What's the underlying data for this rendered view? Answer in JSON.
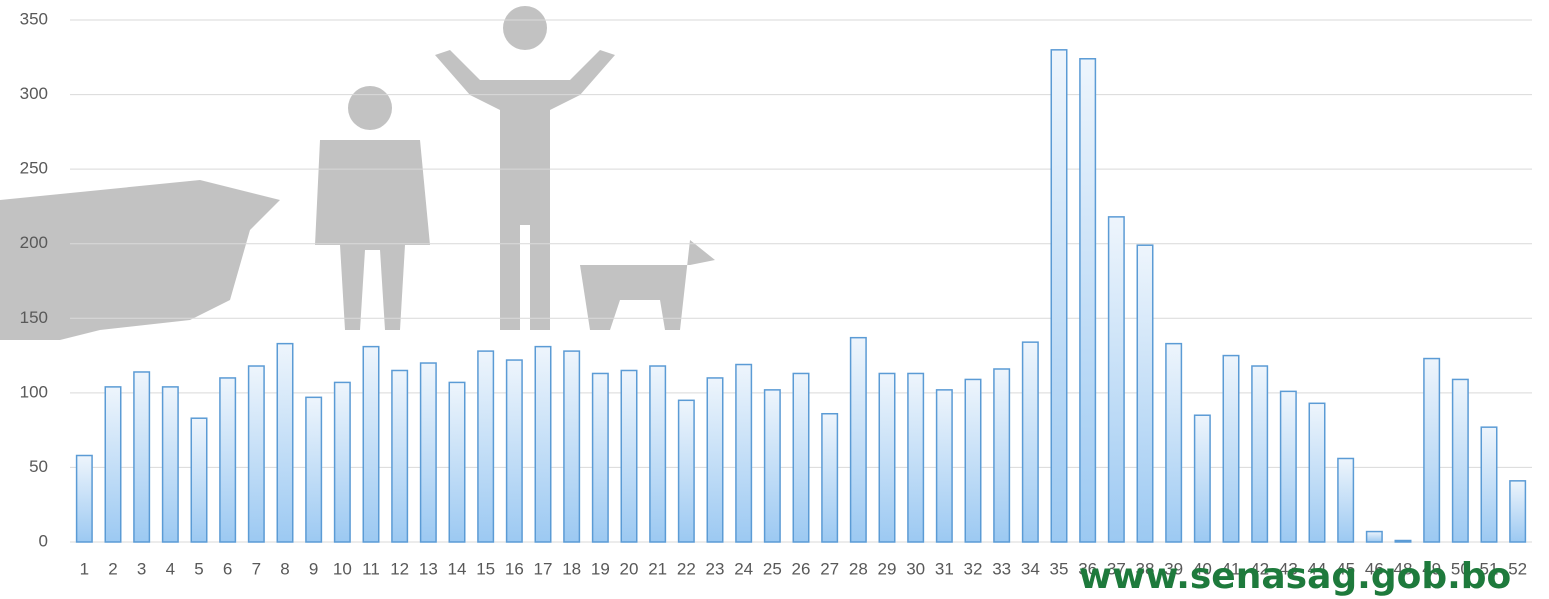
{
  "chart_data": {
    "type": "bar",
    "categories": [
      "1",
      "2",
      "3",
      "4",
      "5",
      "6",
      "7",
      "8",
      "9",
      "10",
      "11",
      "12",
      "13",
      "14",
      "15",
      "16",
      "17",
      "18",
      "19",
      "20",
      "21",
      "22",
      "23",
      "24",
      "25",
      "26",
      "27",
      "28",
      "29",
      "30",
      "31",
      "32",
      "33",
      "34",
      "35",
      "36",
      "37",
      "38",
      "39",
      "40",
      "41",
      "42",
      "43",
      "44",
      "45",
      "46",
      "48",
      "49",
      "50",
      "51",
      "52"
    ],
    "values": [
      58,
      104,
      114,
      104,
      83,
      110,
      118,
      133,
      97,
      107,
      131,
      115,
      120,
      107,
      128,
      122,
      131,
      128,
      113,
      115,
      118,
      95,
      110,
      119,
      102,
      113,
      86,
      137,
      113,
      113,
      102,
      109,
      116,
      134,
      330,
      324,
      218,
      199,
      133,
      85,
      125,
      118,
      101,
      93,
      56,
      7,
      1,
      123,
      109,
      77,
      41
    ],
    "color": "#5b9bd5",
    "ylim": [
      0,
      350
    ],
    "yticks": [
      0,
      50,
      100,
      150,
      200,
      250,
      300,
      350
    ],
    "grid": true,
    "watermark": "www.senasag.gob.bo"
  }
}
